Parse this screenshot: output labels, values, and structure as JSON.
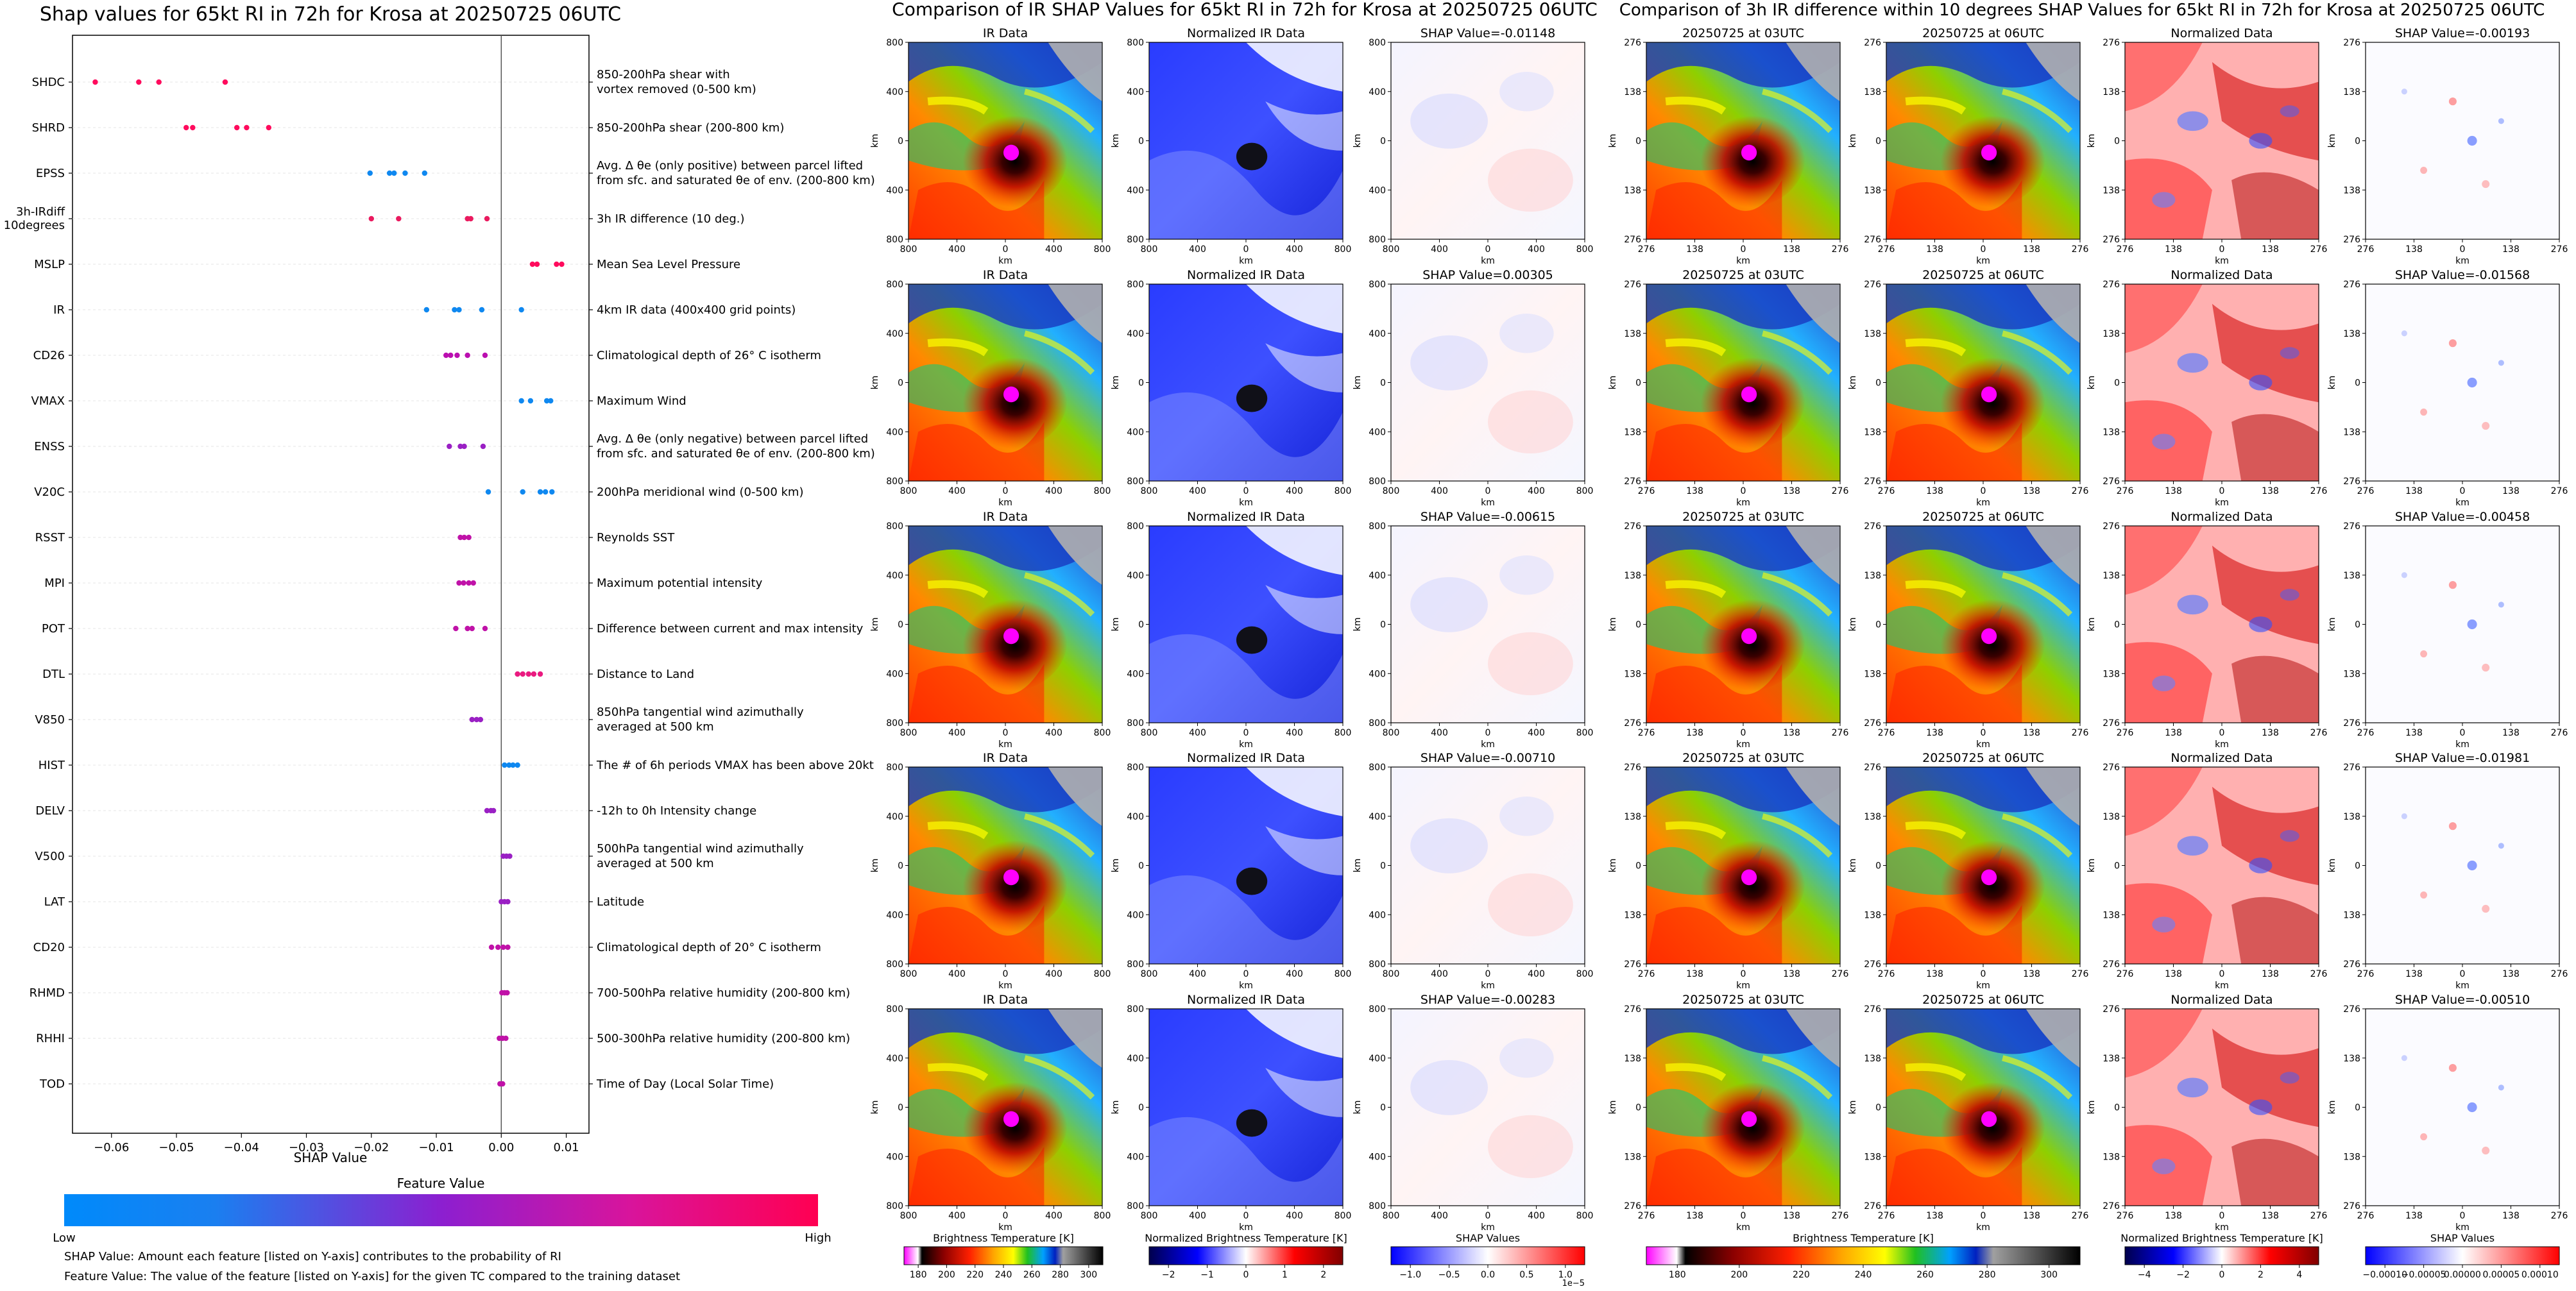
{
  "shap": {
    "title": "Shap values for 65kt RI in 72h for Krosa at 20250725 06UTC",
    "xlabel": "SHAP Value",
    "colorbar_title": "Feature Value",
    "low_label": "Low",
    "high_label": "High",
    "footnote1": "SHAP Value: Amount each feature [listed on Y-axis] contributes to the probability of RI",
    "footnote2": "Feature Value: The value of the feature [listed on Y-axis] for the given TC compared to the training dataset"
  },
  "ir_section": {
    "title": "Comparison of IR SHAP Values for 65kt RI in 72h for Krosa at 20250725 06UTC",
    "col_titles": [
      "IR Data",
      "Normalized IR Data"
    ],
    "shap_prefix": "SHAP Value=",
    "shap_values": [
      "-0.01148",
      "0.00305",
      "-0.00615",
      "-0.00710",
      "-0.00283"
    ],
    "axis_label": "km",
    "ticks": [
      "800",
      "400",
      "0",
      "400",
      "800"
    ],
    "cb_labels": [
      "Brightness Temperature [K]",
      "Normalized Brightness Temperature [K]",
      "SHAP Values"
    ],
    "cb1_ticks": [
      "180",
      "200",
      "220",
      "240",
      "260",
      "280",
      "300"
    ],
    "cb2_ticks": [
      "−2",
      "−1",
      "0",
      "1",
      "2"
    ],
    "cb3_ticks": [
      "−1.0",
      "−0.5",
      "0.0",
      "0.5",
      "1.0"
    ],
    "cb3_exp": "1e−5"
  },
  "diff_section": {
    "title": "Comparison of 3h IR difference within 10 degrees SHAP Values for 65kt RI in 72h for Krosa at 20250725 06UTC",
    "col_titles": [
      "20250725 at 03UTC",
      "20250725 at 06UTC",
      "Normalized Data"
    ],
    "shap_prefix": "SHAP Value=",
    "shap_values": [
      "-0.00193",
      "-0.01568",
      "-0.00458",
      "-0.01981",
      "-0.00510"
    ],
    "axis_label": "km",
    "ticks": [
      "276",
      "138",
      "0",
      "138",
      "276"
    ],
    "cb_labels": [
      "Brightness Temperature [K]",
      "Normalized Brightness Temperature [K]",
      "SHAP Values"
    ],
    "cb1_ticks": [
      "180",
      "200",
      "220",
      "240",
      "260",
      "280",
      "300"
    ],
    "cb2_ticks": [
      "−4",
      "−2",
      "0",
      "2",
      "4"
    ],
    "cb3_ticks": [
      "−0.00010",
      "−0.00005",
      "0.00000",
      "0.00005",
      "0.00010"
    ]
  },
  "chart_data": [
    {
      "type": "scatter",
      "title": "Shap values for 65kt RI in 72h for Krosa at 20250725 06UTC",
      "xlabel": "SHAP Value",
      "xlim": [
        -0.066,
        0.0135
      ],
      "xticks": [
        "−0.06",
        "−0.05",
        "−0.04",
        "−0.03",
        "−0.02",
        "−0.01",
        "0.00",
        "0.01"
      ],
      "xtick_values": [
        -0.06,
        -0.05,
        -0.04,
        -0.03,
        -0.02,
        -0.01,
        0.0,
        0.01
      ],
      "features": [
        {
          "name": "SHDC",
          "desc": [
            "850-200hPa shear with",
            "vortex removed (0-500 km)"
          ],
          "values": [
            -0.0625,
            -0.0558,
            -0.0527,
            -0.0425
          ],
          "color": "#ff0b5d"
        },
        {
          "name": "SHRD",
          "desc": [
            "850-200hPa shear (200-800 km)"
          ],
          "values": [
            -0.0485,
            -0.0475,
            -0.0407,
            -0.0392,
            -0.0358
          ],
          "color": "#ff0b5d"
        },
        {
          "name": "EPSS",
          "desc": [
            "Avg. Δ θe (only positive) between parcel lifted",
            "from sfc. and saturated θe of env. (200-800 km)"
          ],
          "values": [
            -0.0202,
            -0.0172,
            -0.0165,
            -0.0148,
            -0.0118
          ],
          "color": "#0f88f0"
        },
        {
          "name": "3h-IRdiff 10degrees",
          "desc": [
            "3h IR difference (10 deg.)"
          ],
          "values": [
            -0.02,
            -0.0158,
            -0.0052,
            -0.0047,
            -0.0022
          ],
          "color": "#ea1a5f"
        },
        {
          "name": "MSLP",
          "desc": [
            "Mean Sea Level Pressure"
          ],
          "values": [
            0.0048,
            0.0055,
            0.0085,
            0.0093
          ],
          "color": "#ff0b5d"
        },
        {
          "name": "IR",
          "desc": [
            "4km IR data (400x400 grid points)"
          ],
          "values": [
            -0.0115,
            -0.0072,
            -0.0065,
            -0.003,
            0.0031
          ],
          "color": "#0f88f0"
        },
        {
          "name": "CD26",
          "desc": [
            "Climatological depth of 26° C isotherm"
          ],
          "values": [
            -0.0085,
            -0.0078,
            -0.0068,
            -0.0052,
            -0.0025
          ],
          "color": "#bb0fb0"
        },
        {
          "name": "VMAX",
          "desc": [
            "Maximum Wind"
          ],
          "values": [
            0.0031,
            0.0045,
            0.007,
            0.0076
          ],
          "color": "#0f88f0"
        },
        {
          "name": "ENSS",
          "desc": [
            "Avg. Δ θe (only negative) between parcel lifted",
            "from sfc. and saturated θe of env. (200-800 km)"
          ],
          "values": [
            -0.008,
            -0.0063,
            -0.0057,
            -0.0028
          ],
          "color": "#9a20c4"
        },
        {
          "name": "V20C",
          "desc": [
            "200hPa meridional wind (0-500 km)"
          ],
          "values": [
            -0.002,
            0.0033,
            0.006,
            0.0068,
            0.0078
          ],
          "color": "#0f88f0"
        },
        {
          "name": "RSST",
          "desc": [
            "Reynolds SST"
          ],
          "values": [
            -0.0063,
            -0.0057,
            -0.005
          ],
          "color": "#c012a8"
        },
        {
          "name": "MPI",
          "desc": [
            "Maximum potential intensity"
          ],
          "values": [
            -0.0065,
            -0.0058,
            -0.005,
            -0.0043
          ],
          "color": "#c012a8"
        },
        {
          "name": "POT",
          "desc": [
            "Difference between current and max intensity"
          ],
          "values": [
            -0.007,
            -0.0052,
            -0.0045,
            -0.0025
          ],
          "color": "#c012a8"
        },
        {
          "name": "DTL",
          "desc": [
            "Distance to Land"
          ],
          "values": [
            0.0025,
            0.0033,
            0.0042,
            0.005,
            0.006
          ],
          "color": "#ea1a80"
        },
        {
          "name": "V850",
          "desc": [
            "850hPa tangential wind azimuthally",
            "averaged at 500 km"
          ],
          "values": [
            -0.0045,
            -0.0038,
            -0.0032
          ],
          "color": "#9a20c4"
        },
        {
          "name": "HIST",
          "desc": [
            "The # of 6h periods VMAX has been above 20kt"
          ],
          "values": [
            0.0005,
            0.0012,
            0.0018,
            0.0025
          ],
          "color": "#0f88f0"
        },
        {
          "name": "DELV",
          "desc": [
            "-12h to 0h Intensity change"
          ],
          "values": [
            -0.0022,
            -0.0016,
            -0.0012
          ],
          "color": "#9a20c4"
        },
        {
          "name": "V500",
          "desc": [
            "500hPa tangential wind azimuthally",
            "averaged at 500 km"
          ],
          "values": [
            0.0003,
            0.0008,
            0.0013
          ],
          "color": "#9a20c4"
        },
        {
          "name": "LAT",
          "desc": [
            "Latitude"
          ],
          "values": [
            0.0,
            0.0005,
            0.001
          ],
          "color": "#9a20c4"
        },
        {
          "name": "CD20",
          "desc": [
            "Climatological depth of 20° C isotherm"
          ],
          "values": [
            -0.0015,
            -0.0005,
            0.0003,
            0.001
          ],
          "color": "#c012a8"
        },
        {
          "name": "RHMD",
          "desc": [
            "700-500hPa relative humidity (200-800 km)"
          ],
          "values": [
            0.0001,
            0.0005,
            0.0009
          ],
          "color": "#c012a8"
        },
        {
          "name": "RHHI",
          "desc": [
            "500-300hPa relative humidity (200-800 km)"
          ],
          "values": [
            -0.0003,
            0.0002,
            0.0007
          ],
          "color": "#c012a8"
        },
        {
          "name": "TOD",
          "desc": [
            "Time of Day (Local Solar Time)"
          ],
          "values": [
            -0.0002,
            0.0002
          ],
          "color": "#c012a8"
        }
      ]
    },
    {
      "type": "heatmap",
      "title": "Comparison of IR SHAP Values for 65kt RI in 72h for Krosa at 20250725 06UTC",
      "rows": 5,
      "columns": [
        "IR Data",
        "Normalized IR Data",
        "SHAP Value"
      ],
      "shap_values": [
        -0.01148,
        0.00305,
        -0.00615,
        -0.0071,
        -0.00283
      ],
      "axis_range_km": [
        -800,
        800
      ]
    },
    {
      "type": "heatmap",
      "title": "Comparison of 3h IR difference within 10 degrees SHAP Values for 65kt RI in 72h for Krosa at 20250725 06UTC",
      "rows": 5,
      "columns": [
        "20250725 at 03UTC",
        "20250725 at 06UTC",
        "Normalized Data",
        "SHAP Value"
      ],
      "shap_values": [
        -0.00193,
        -0.01568,
        -0.00458,
        -0.01981,
        -0.0051
      ],
      "axis_range_km": [
        -276,
        276
      ]
    }
  ]
}
